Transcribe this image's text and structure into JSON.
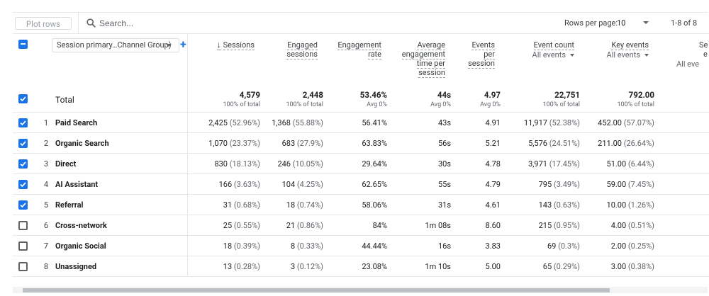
{
  "toolbar": {
    "plot_rows_label": "Plot rows",
    "search_placeholder": "Search...",
    "rows_per_page_label": "Rows per page:",
    "rows_per_page_value": "10",
    "pagination": "1-8 of 8"
  },
  "header": {
    "dimension_selector": "Session primary…Channel Group)",
    "columns": [
      {
        "lines": [
          "Sessions"
        ],
        "sort": "↓"
      },
      {
        "lines": [
          "Engaged",
          "sessions"
        ]
      },
      {
        "lines": [
          "Engagement",
          "rate"
        ]
      },
      {
        "lines": [
          "Average",
          "engagement",
          "time per",
          "session"
        ]
      },
      {
        "lines": [
          "Events",
          "per",
          "session"
        ]
      },
      {
        "lines": [
          "Event count"
        ],
        "sub": "All events"
      },
      {
        "lines": [
          "Key events"
        ],
        "sub": "All events"
      },
      {
        "lines": [
          "Se",
          "e"
        ],
        "sub": "All eve"
      }
    ]
  },
  "total": {
    "label": "Total",
    "sessions": "4,579",
    "sessions_sub": "100% of total",
    "engaged": "2,448",
    "engaged_sub": "100% of total",
    "eng_rate": "53.46%",
    "eng_rate_sub": "Avg 0%",
    "avg_time": "44s",
    "avg_time_sub": "Avg 0%",
    "events_per": "4.97",
    "events_per_sub": "Avg 0%",
    "event_count": "22,751",
    "event_count_sub": "100% of total",
    "key_events": "792.00",
    "key_events_sub": "100% of total"
  },
  "rows": [
    {
      "n": "1",
      "name": "Paid Search",
      "checked": true,
      "sessions": "2,425",
      "sessions_pct": "(52.96%)",
      "engaged": "1,368",
      "engaged_pct": "(55.88%)",
      "eng_rate": "56.41%",
      "avg_time": "43s",
      "events_per": "4.91",
      "event_count": "11,917",
      "event_count_pct": "(52.38%)",
      "key_events": "452.00",
      "key_events_pct": "(57.07%)"
    },
    {
      "n": "2",
      "name": "Organic Search",
      "checked": true,
      "sessions": "1,070",
      "sessions_pct": "(23.37%)",
      "engaged": "683",
      "engaged_pct": "(27.9%)",
      "eng_rate": "63.83%",
      "avg_time": "56s",
      "events_per": "5.21",
      "event_count": "5,576",
      "event_count_pct": "(24.51%)",
      "key_events": "211.00",
      "key_events_pct": "(26.64%)"
    },
    {
      "n": "3",
      "name": "Direct",
      "checked": true,
      "sessions": "830",
      "sessions_pct": "(18.13%)",
      "engaged": "246",
      "engaged_pct": "(10.05%)",
      "eng_rate": "29.64%",
      "avg_time": "30s",
      "events_per": "4.78",
      "event_count": "3,971",
      "event_count_pct": "(17.45%)",
      "key_events": "51.00",
      "key_events_pct": "(6.44%)"
    },
    {
      "n": "4",
      "name": "AI Assistant",
      "checked": true,
      "sessions": "166",
      "sessions_pct": "(3.63%)",
      "engaged": "104",
      "engaged_pct": "(4.25%)",
      "eng_rate": "62.65%",
      "avg_time": "55s",
      "events_per": "4.79",
      "event_count": "795",
      "event_count_pct": "(3.49%)",
      "key_events": "59.00",
      "key_events_pct": "(7.45%)"
    },
    {
      "n": "5",
      "name": "Referral",
      "checked": true,
      "sessions": "31",
      "sessions_pct": "(0.68%)",
      "engaged": "18",
      "engaged_pct": "(0.74%)",
      "eng_rate": "58.06%",
      "avg_time": "31s",
      "events_per": "4.61",
      "event_count": "143",
      "event_count_pct": "(0.63%)",
      "key_events": "10.00",
      "key_events_pct": "(1.26%)"
    },
    {
      "n": "6",
      "name": "Cross-network",
      "checked": false,
      "sessions": "25",
      "sessions_pct": "(0.55%)",
      "engaged": "21",
      "engaged_pct": "(0.86%)",
      "eng_rate": "84%",
      "avg_time": "1m 08s",
      "events_per": "8.60",
      "event_count": "215",
      "event_count_pct": "(0.95%)",
      "key_events": "4.00",
      "key_events_pct": "(0.51%)"
    },
    {
      "n": "7",
      "name": "Organic Social",
      "checked": false,
      "sessions": "18",
      "sessions_pct": "(0.39%)",
      "engaged": "8",
      "engaged_pct": "(0.33%)",
      "eng_rate": "44.44%",
      "avg_time": "16s",
      "events_per": "3.83",
      "event_count": "69",
      "event_count_pct": "(0.3%)",
      "key_events": "2.00",
      "key_events_pct": "(0.25%)"
    },
    {
      "n": "8",
      "name": "Unassigned",
      "checked": false,
      "sessions": "13",
      "sessions_pct": "(0.28%)",
      "engaged": "3",
      "engaged_pct": "(0.12%)",
      "eng_rate": "23.08%",
      "avg_time": "1m 10s",
      "events_per": "5.00",
      "event_count": "65",
      "event_count_pct": "(0.29%)",
      "key_events": "3.00",
      "key_events_pct": "(0.38%)"
    }
  ],
  "icons": {
    "search": "search-icon",
    "add": "plus-icon",
    "checkbox_checked": "check-icon"
  },
  "colors": {
    "accent": "#1a73e8",
    "border": "#e6e6e6"
  }
}
